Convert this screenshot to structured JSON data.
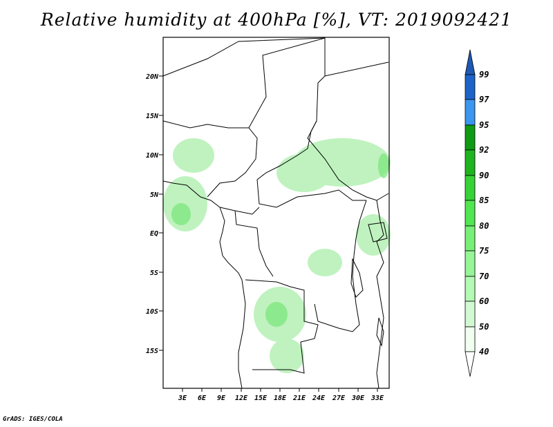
{
  "title": "Relative humidity at 400hPa [%], VT: 2019092421",
  "credit": "GrADS: IGES/COLA",
  "map": {
    "lat_ticks": [
      "20N",
      "15N",
      "10N",
      "5N",
      "EQ",
      "5S",
      "10S",
      "15S"
    ],
    "lon_ticks": [
      "3E",
      "6E",
      "9E",
      "12E",
      "15E",
      "18E",
      "21E",
      "24E",
      "27E",
      "30E",
      "33E"
    ],
    "lon_range": [
      0,
      35
    ],
    "lat_range": [
      -20,
      25
    ],
    "fill_color": "#b4f0b4"
  },
  "colorbar": {
    "labels": [
      "99",
      "97",
      "95",
      "92",
      "90",
      "85",
      "80",
      "75",
      "70",
      "60",
      "50",
      "40"
    ],
    "colors": [
      "#1e64c8",
      "#2878dc",
      "#3c96f0",
      "#0f9b14",
      "#1eb41e",
      "#37d237",
      "#50e650",
      "#78f078",
      "#96f596",
      "#b4fab4",
      "#d2fad2",
      "#f0fff0"
    ],
    "top_color": "#1e5ab4"
  }
}
